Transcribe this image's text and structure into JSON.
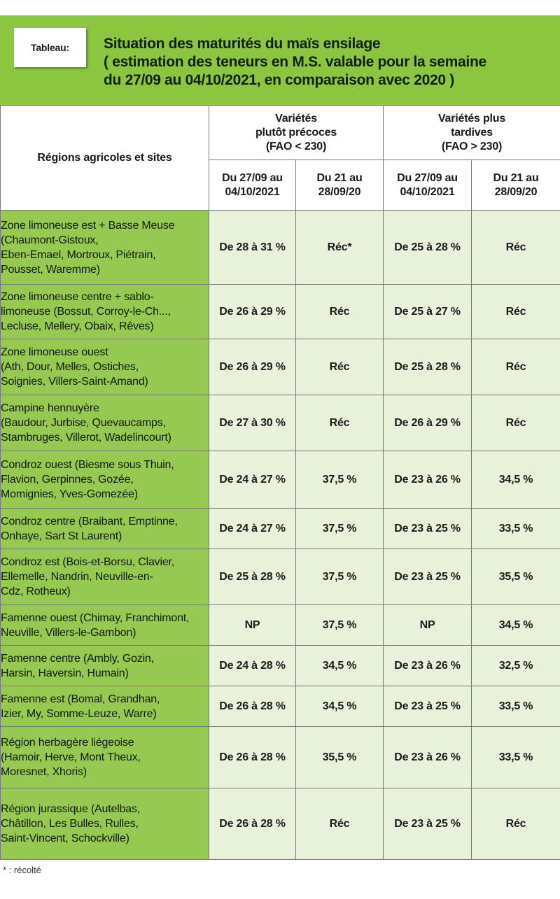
{
  "header": {
    "tag": "Tableau:",
    "title_lines": [
      "Situation des maturités du maïs ensilage",
      "( estimation des teneurs en M.S. valable pour la semaine",
      "du 27/09 au 04/10/2021, en comparaison avec 2020 )"
    ]
  },
  "table": {
    "regions_header": "Régions agricoles et sites",
    "groups": [
      {
        "lines": [
          "Variétés",
          "plutôt précoces",
          "(FAO < 230)"
        ]
      },
      {
        "lines": [
          "Variétés plus",
          "tardives",
          "(FAO > 230)"
        ]
      }
    ],
    "period_headers": [
      [
        "Du 27/09 au",
        "04/10/2021"
      ],
      [
        "Du 21 au",
        "28/09/20"
      ],
      [
        "Du 27/09 au",
        "04/10/2021"
      ],
      [
        "Du 21 au",
        "28/09/20"
      ]
    ],
    "rows": [
      {
        "region": [
          "Zone limoneuse est + Basse Meuse",
          "(Chaumont-Gistoux,",
          "Eben-Emael, Mortroux, Piétrain,",
          "Pousset, Waremme)"
        ],
        "values": [
          "De 28 à 31 %",
          "Réc*",
          "De 25 à 28 %",
          "Réc"
        ]
      },
      {
        "region": [
          "Zone limoneuse centre + sablo-",
          "limoneuse (Bossut, Corroy-le-Ch...,",
          "Lecluse, Mellery, Obaix, Rêves)"
        ],
        "values": [
          "De 26 à 29 %",
          "Réc",
          "De 25 à 27 %",
          "Réc"
        ]
      },
      {
        "region": [
          "Zone limoneuse ouest",
          "(Ath, Dour, Melles, Ostiches,",
          "Soignies, Villers-Saint-Amand)"
        ],
        "values": [
          "De 26 à 29 %",
          "Réc",
          "De 25 à 28 %",
          "Réc"
        ]
      },
      {
        "region": [
          "Campine hennuyère",
          "(Baudour, Jurbise, Quevaucamps,",
          "Stambruges, Villerot, Wadelincourt)"
        ],
        "values": [
          "De 27 à 30 %",
          "Réc",
          "De 26 à 29 %",
          "Réc"
        ]
      },
      {
        "region": [
          "Condroz ouest (Biesme sous Thuin,",
          "Flavion, Gerpinnes, Gozée,",
          "Momignies, Yves-Gomezée)"
        ],
        "values": [
          "De 24 à 27 %",
          "37,5 %",
          "De 23 à 26 %",
          "34,5 %"
        ]
      },
      {
        "region": [
          "Condroz centre (Braibant, Emptinne,",
          "Onhaye, Sart St Laurent)"
        ],
        "values": [
          "De 24 à 27 %",
          "37,5 %",
          "De 23 à 25 %",
          "33,5 %"
        ]
      },
      {
        "region": [
          "Condroz est (Bois-et-Borsu, Clavier,",
          "Ellemelle, Nandrin, Neuville-en-",
          "Cdz, Rotheux)"
        ],
        "values": [
          "De 25 à 28 %",
          "37,5 %",
          "De 23 à 25 %",
          "35,5 %"
        ]
      },
      {
        "region": [
          "Famenne ouest (Chimay, Franchimont,",
          "Neuville, Villers-le-Gambon)"
        ],
        "values": [
          "NP",
          "37,5 %",
          "NP",
          "34,5 %"
        ]
      },
      {
        "region": [
          "Famenne centre (Ambly, Gozin,",
          "Harsin, Haversin, Humain)"
        ],
        "values": [
          "De 24 à 28 %",
          "34,5 %",
          "De 23 à 26 %",
          "32,5 %"
        ]
      },
      {
        "region": [
          "Famenne est (Bomal, Grandhan,",
          "Izier, My, Somme-Leuze, Warre)"
        ],
        "values": [
          "De 26 à 28 %",
          "34,5 %",
          "De 23 à 25 %",
          "33,5 %"
        ]
      },
      {
        "region": [
          "Région herbagère liégeoise",
          "(Hamoir, Herve, Mont Theux,",
          "Moresnet, Xhoris)"
        ],
        "values": [
          "De 26 à 28 %",
          "35,5 %",
          "De 23 à 26 %",
          "33,5 %"
        ]
      },
      {
        "region": [
          "Région jurassique (Autelbas,",
          "Châtillon, Les Bulles, Rulles,",
          "Saint-Vincent, Schockville)"
        ],
        "values": [
          "De 26 à 28 %",
          "Réc",
          "De 23 à 25 %",
          "Réc"
        ]
      }
    ]
  },
  "footnote": "* : récolté",
  "colors": {
    "header_green": "#8cc63f",
    "region_green": "#95c952",
    "value_bg": "#e8f2da"
  }
}
